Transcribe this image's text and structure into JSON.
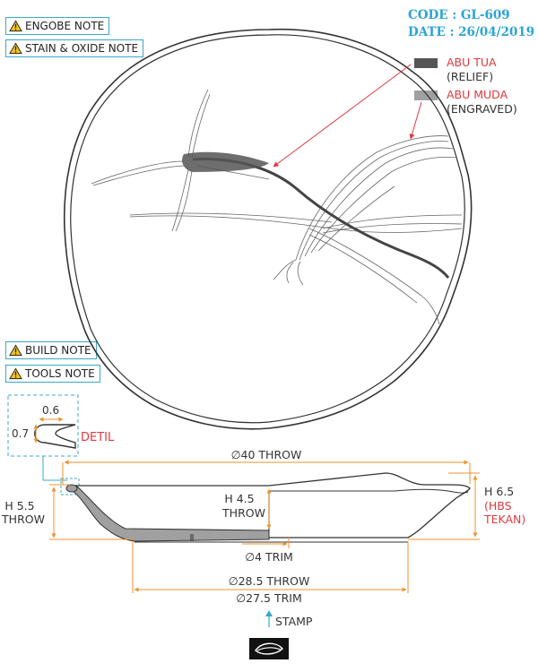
{
  "header": {
    "code": "CODE : GL-609",
    "date": "DATE : 26/04/2019"
  },
  "notes": {
    "engobe": "ENGOBE NOTE",
    "stain_oxide": "STAIN & OXIDE NOTE",
    "build": "BUILD NOTE",
    "tools": "TOOLS NOTE"
  },
  "legend": {
    "relief_name": "ABU TUA",
    "relief_type": "(RELIEF)",
    "relief_color": "#555555",
    "engraved_name": "ABU MUDA",
    "engraved_type": "(ENGRAVED)",
    "engraved_color": "#a0a0a0"
  },
  "detail": {
    "dim_width": "0.6",
    "dim_height": "0.7",
    "label": "DETIL"
  },
  "dimensions": {
    "diameter_throw": "∅40 THROW",
    "left_height_value": "H 5.5",
    "left_height_note": "THROW",
    "inner_height_value": "H 4.5",
    "inner_height_note": "THROW",
    "right_height_value": "H 6.5",
    "right_height_note1": "(HBS",
    "right_height_note2": "TEKAN)",
    "foot_trim": "∅4 TRIM",
    "base_throw": "∅28.5 THROW",
    "base_trim": "∅27.5 TRIM"
  },
  "stamp": {
    "label": "STAMP"
  },
  "colors": {
    "accent_blue": "#38a9c9",
    "dim_orange": "#f0922b",
    "arrow_red": "#e0393e"
  }
}
